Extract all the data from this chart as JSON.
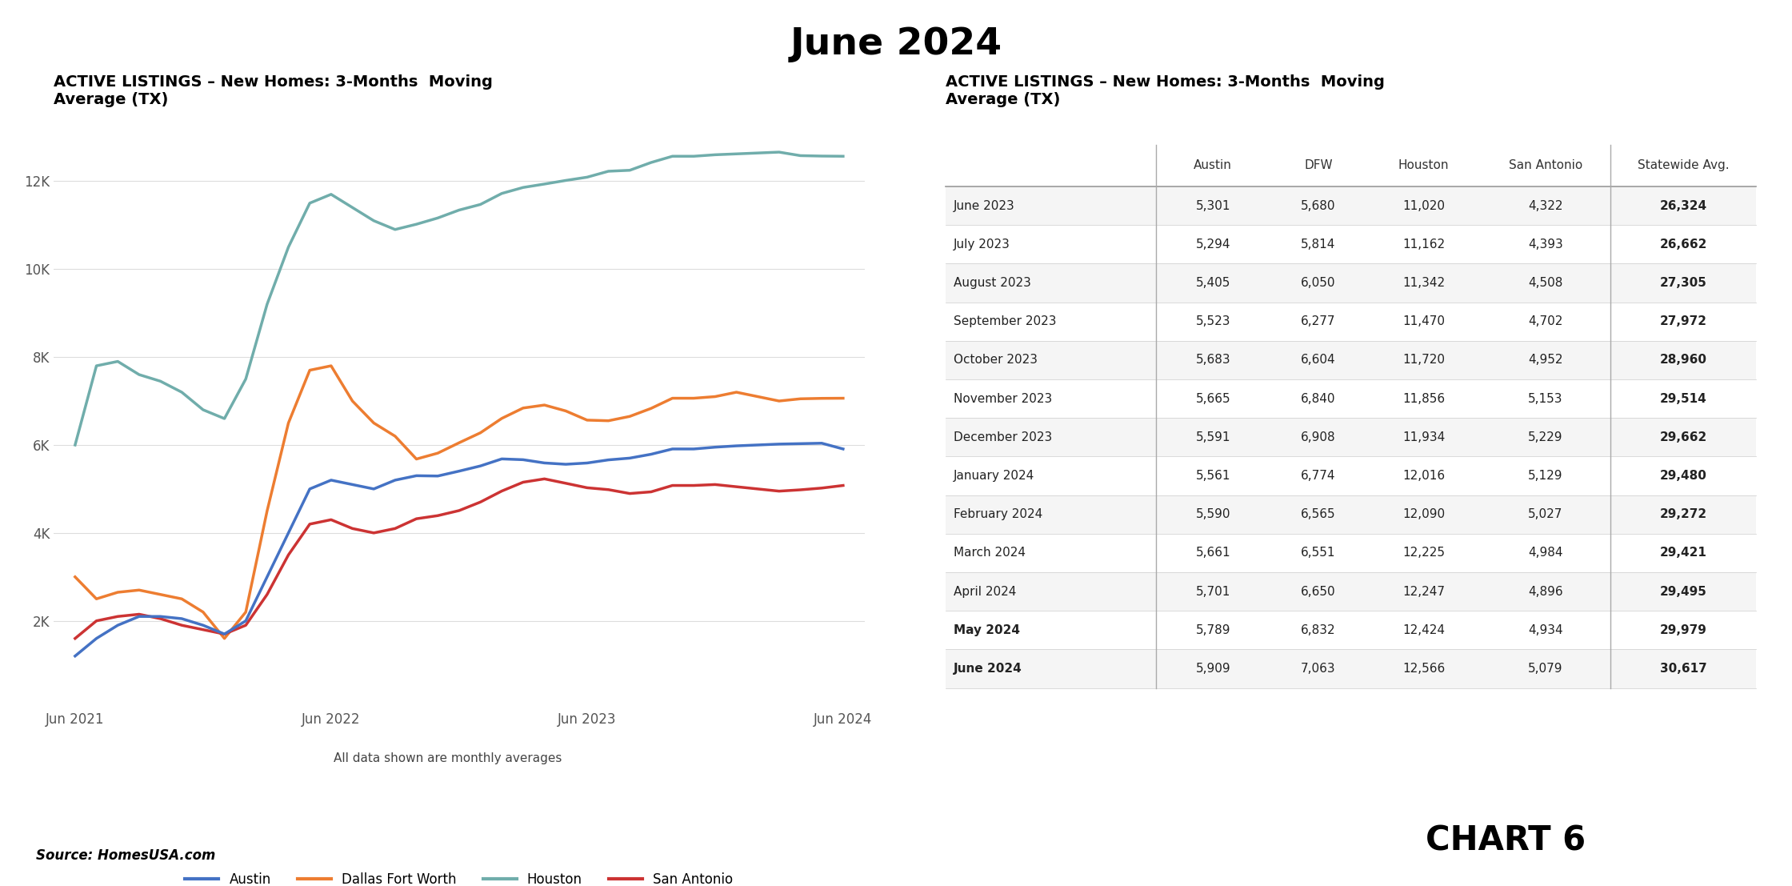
{
  "title": "June 2024",
  "chart_title": "ACTIVE LISTINGS – New Homes: 3-Months  Moving\nAverage (TX)",
  "table_title": "ACTIVE LISTINGS – New Homes: 3-Months  Moving\nAverage (TX)",
  "subtitle": "All data shown are monthly averages",
  "source": "Source: HomesUSA.com",
  "chart6_label": "CHART 6",
  "line_colors": {
    "Austin": "#4472C4",
    "Dallas Fort Worth": "#ED7D31",
    "Houston": "#70ADAB",
    "San Antonio": "#CC3333"
  },
  "x_tick_labels": [
    "Jun 2021",
    "Jun 2022",
    "Jun 2023",
    "Jun 2024"
  ],
  "y_ticks": [
    2000,
    4000,
    6000,
    8000,
    10000,
    12000
  ],
  "y_tick_labels": [
    "2K",
    "4K",
    "6K",
    "8K",
    "10K",
    "12K"
  ],
  "time_points": 37,
  "houston_data": [
    6000,
    7800,
    7900,
    7600,
    7450,
    7200,
    6800,
    6600,
    7500,
    9200,
    10500,
    11500,
    11700,
    11400,
    11100,
    10900,
    11020,
    11162,
    11342,
    11470,
    11720,
    11856,
    11934,
    12016,
    12090,
    12225,
    12247,
    12424,
    12566,
    12566,
    12600,
    12620,
    12640,
    12660,
    12580,
    12570,
    12566
  ],
  "dallas_data": [
    3000,
    2500,
    2650,
    2700,
    2600,
    2500,
    2200,
    1600,
    2200,
    4500,
    6500,
    7700,
    7800,
    7000,
    6500,
    6200,
    5680,
    5814,
    6050,
    6277,
    6604,
    6840,
    6908,
    6774,
    6565,
    6551,
    6650,
    6832,
    7063,
    7063,
    7100,
    7200,
    7100,
    7000,
    7050,
    7060,
    7063
  ],
  "austin_data": [
    1200,
    1600,
    1900,
    2100,
    2100,
    2050,
    1900,
    1700,
    2000,
    3000,
    4000,
    5000,
    5200,
    5100,
    5000,
    5200,
    5301,
    5294,
    5405,
    5523,
    5683,
    5665,
    5591,
    5561,
    5590,
    5661,
    5701,
    5789,
    5909,
    5909,
    5950,
    5980,
    6000,
    6020,
    6030,
    6040,
    5909
  ],
  "san_antonio_data": [
    1600,
    2000,
    2100,
    2150,
    2050,
    1900,
    1800,
    1700,
    1900,
    2600,
    3500,
    4200,
    4300,
    4100,
    4000,
    4100,
    4322,
    4393,
    4508,
    4702,
    4952,
    5153,
    5229,
    5129,
    5027,
    4984,
    4896,
    4934,
    5079,
    5079,
    5100,
    5050,
    5000,
    4950,
    4980,
    5020,
    5079
  ],
  "table_rows": [
    {
      "month": "June 2023",
      "austin": "5,301",
      "dfw": "5,680",
      "houston": "11,020",
      "san_antonio": "4,322",
      "statewide": "26,324",
      "bold": false
    },
    {
      "month": "July 2023",
      "austin": "5,294",
      "dfw": "5,814",
      "houston": "11,162",
      "san_antonio": "4,393",
      "statewide": "26,662",
      "bold": false
    },
    {
      "month": "August 2023",
      "austin": "5,405",
      "dfw": "6,050",
      "houston": "11,342",
      "san_antonio": "4,508",
      "statewide": "27,305",
      "bold": false
    },
    {
      "month": "September 2023",
      "austin": "5,523",
      "dfw": "6,277",
      "houston": "11,470",
      "san_antonio": "4,702",
      "statewide": "27,972",
      "bold": false
    },
    {
      "month": "October 2023",
      "austin": "5,683",
      "dfw": "6,604",
      "houston": "11,720",
      "san_antonio": "4,952",
      "statewide": "28,960",
      "bold": false
    },
    {
      "month": "November 2023",
      "austin": "5,665",
      "dfw": "6,840",
      "houston": "11,856",
      "san_antonio": "5,153",
      "statewide": "29,514",
      "bold": false
    },
    {
      "month": "December 2023",
      "austin": "5,591",
      "dfw": "6,908",
      "houston": "11,934",
      "san_antonio": "5,229",
      "statewide": "29,662",
      "bold": false
    },
    {
      "month": "January 2024",
      "austin": "5,561",
      "dfw": "6,774",
      "houston": "12,016",
      "san_antonio": "5,129",
      "statewide": "29,480",
      "bold": false
    },
    {
      "month": "February 2024",
      "austin": "5,590",
      "dfw": "6,565",
      "houston": "12,090",
      "san_antonio": "5,027",
      "statewide": "29,272",
      "bold": false
    },
    {
      "month": "March 2024",
      "austin": "5,661",
      "dfw": "6,551",
      "houston": "12,225",
      "san_antonio": "4,984",
      "statewide": "29,421",
      "bold": false
    },
    {
      "month": "April 2024",
      "austin": "5,701",
      "dfw": "6,650",
      "houston": "12,247",
      "san_antonio": "4,896",
      "statewide": "29,495",
      "bold": false
    },
    {
      "month": "May 2024",
      "austin": "5,789",
      "dfw": "6,832",
      "houston": "12,424",
      "san_antonio": "4,934",
      "statewide": "29,979",
      "bold": true
    },
    {
      "month": "June 2024",
      "austin": "5,909",
      "dfw": "7,063",
      "houston": "12,566",
      "san_antonio": "5,079",
      "statewide": "30,617",
      "bold": true
    }
  ],
  "table_headers": [
    "",
    "Austin",
    "DFW",
    "Houston",
    "San Antonio",
    "Statewide Avg."
  ],
  "background_color": "#ffffff",
  "col_widths": [
    0.26,
    0.14,
    0.12,
    0.14,
    0.16,
    0.18
  ]
}
